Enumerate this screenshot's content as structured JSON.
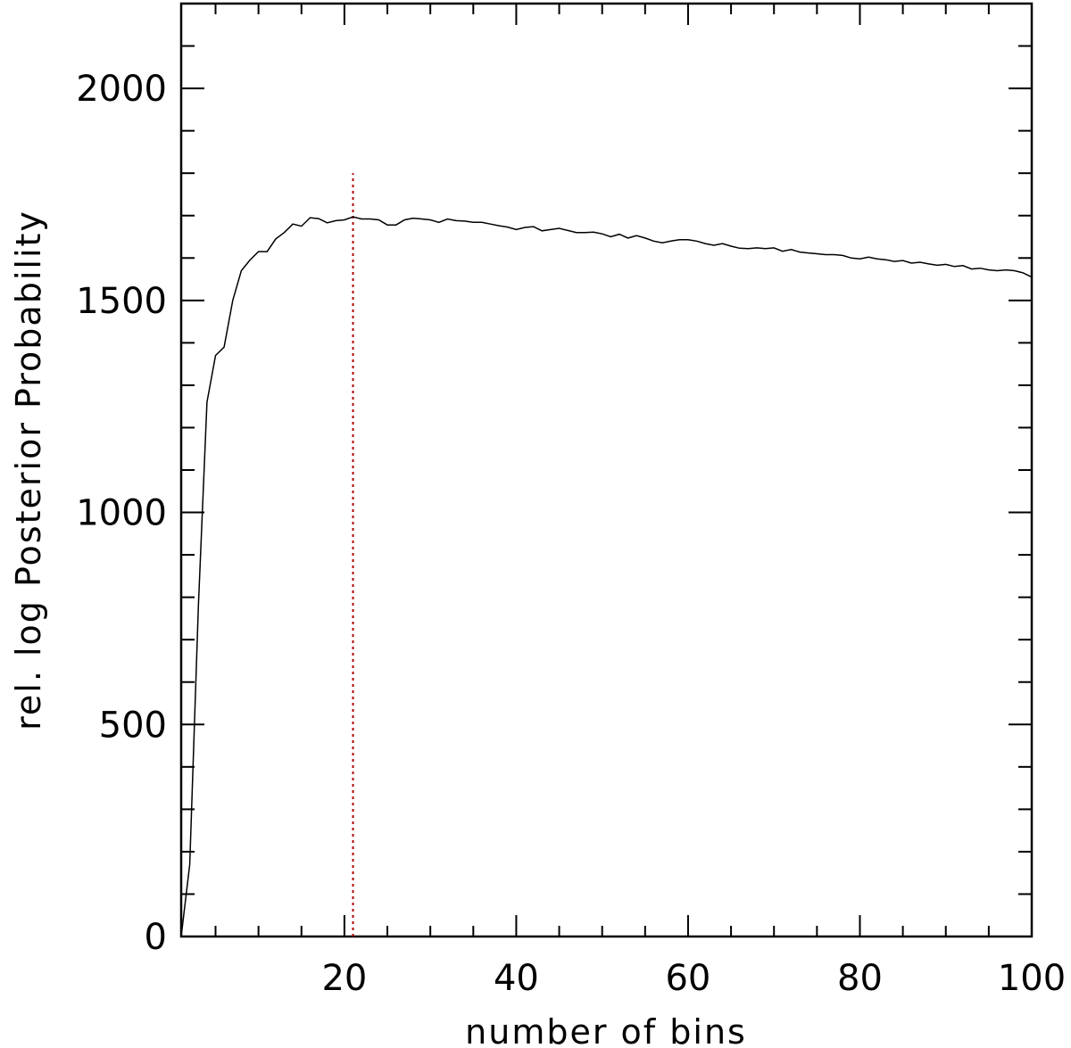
{
  "chart_data": {
    "type": "line",
    "title": "",
    "xlabel": "number of bins",
    "ylabel": "rel. log Posterior Probability",
    "xlim": [
      1,
      100
    ],
    "ylim": [
      0,
      2200
    ],
    "xticks": [
      20,
      40,
      60,
      80,
      100
    ],
    "yticks": [
      0,
      500,
      1000,
      1500,
      2000
    ],
    "grid": false,
    "legend": "none",
    "series": [
      {
        "x": [
          1,
          2,
          3,
          4,
          5,
          6,
          7,
          8,
          9,
          10,
          11,
          12,
          13,
          14,
          15,
          16,
          17,
          18,
          19,
          20,
          21,
          22,
          23,
          24,
          25,
          26,
          27,
          28,
          29,
          30,
          31,
          32,
          33,
          34,
          35,
          36,
          37,
          38,
          39,
          40,
          41,
          42,
          43,
          44,
          45,
          46,
          47,
          48,
          49,
          50,
          51,
          52,
          53,
          54,
          55,
          56,
          57,
          58,
          59,
          60,
          61,
          62,
          63,
          64,
          65,
          66,
          67,
          68,
          69,
          70,
          71,
          72,
          73,
          74,
          75,
          76,
          77,
          78,
          79,
          80,
          81,
          82,
          83,
          84,
          85,
          86,
          87,
          88,
          89,
          90,
          91,
          92,
          93,
          94,
          95,
          96,
          97,
          98,
          99,
          100
        ],
        "values": [
          0,
          170,
          780,
          1260,
          1370,
          1390,
          1500,
          1570,
          1595,
          1615,
          1615,
          1645,
          1660,
          1680,
          1675,
          1695,
          1693,
          1683,
          1688,
          1690,
          1697,
          1692,
          1692,
          1690,
          1678,
          1678,
          1690,
          1694,
          1692,
          1690,
          1684,
          1692,
          1688,
          1687,
          1684,
          1684,
          1680,
          1676,
          1673,
          1667,
          1672,
          1674,
          1664,
          1667,
          1670,
          1665,
          1660,
          1660,
          1661,
          1657,
          1650,
          1656,
          1647,
          1653,
          1647,
          1640,
          1636,
          1640,
          1643,
          1643,
          1640,
          1634,
          1630,
          1634,
          1628,
          1623,
          1622,
          1624,
          1622,
          1624,
          1616,
          1620,
          1614,
          1612,
          1610,
          1608,
          1608,
          1606,
          1600,
          1598,
          1602,
          1598,
          1596,
          1592,
          1594,
          1588,
          1590,
          1586,
          1583,
          1585,
          1580,
          1582,
          1574,
          1576,
          1572,
          1570,
          1572,
          1570,
          1565,
          1555
        ]
      }
    ],
    "annotations": [
      {
        "type": "vline",
        "x": 21,
        "y_top": 1800,
        "color": "#b00000",
        "style": "dotted"
      }
    ],
    "colors": {
      "line": "#000000",
      "marker_line": "#b00000"
    }
  }
}
